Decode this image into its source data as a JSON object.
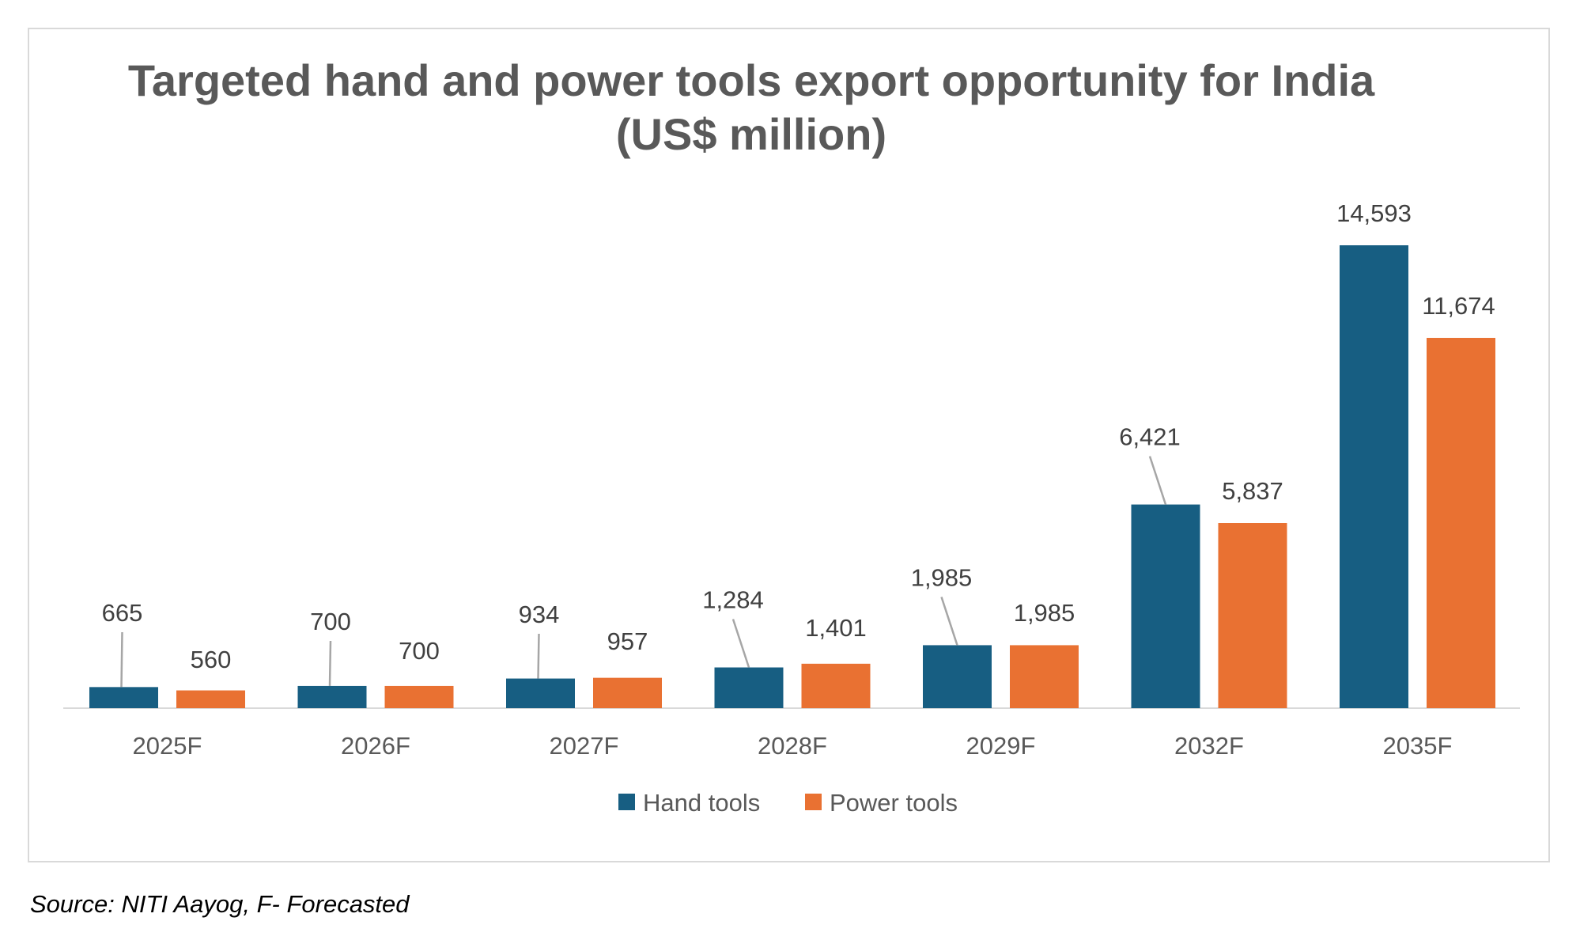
{
  "chart_data": {
    "type": "bar",
    "title": "Targeted hand and power tools export opportunity for India (US$ million)",
    "categories": [
      "2025F",
      "2026F",
      "2027F",
      "2028F",
      "2029F",
      "2032F",
      "2035F"
    ],
    "series": [
      {
        "name": "Hand tools",
        "color": "#175e82",
        "values": [
          665,
          700,
          934,
          1284,
          1985,
          6421,
          14593
        ],
        "labels": [
          "665",
          "700",
          "934",
          "1,284",
          "1,985",
          "6,421",
          "14,593"
        ]
      },
      {
        "name": "Power tools",
        "color": "#e97132",
        "values": [
          560,
          700,
          957,
          1401,
          1985,
          5837,
          11674
        ],
        "labels": [
          "560",
          "700",
          "957",
          "1,401",
          "1,985",
          "5,837",
          "11,674"
        ]
      }
    ],
    "ylim": [
      0,
      15000
    ],
    "xlabel": "",
    "ylabel": "",
    "legend": "bottom",
    "grid": false
  },
  "source": "Source: NITI Aayog, F- Forecasted"
}
